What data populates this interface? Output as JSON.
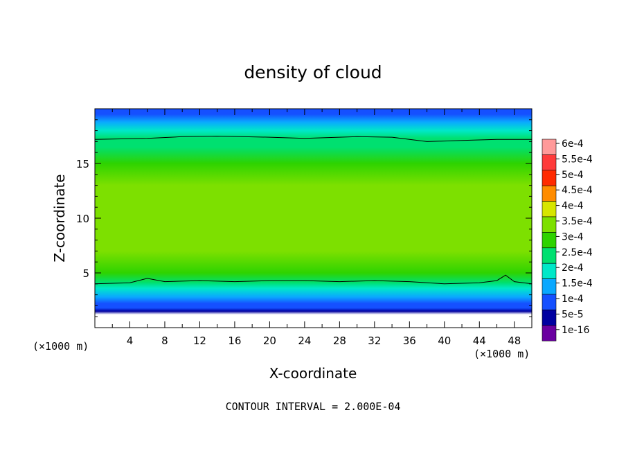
{
  "chart_data": {
    "type": "heatmap",
    "title": "density of cloud",
    "xlabel": "X-coordinate",
    "ylabel": "Z-coordinate",
    "x_unit_left": "(×1000 m)",
    "x_unit_right": "(×1000 m)",
    "xlim": [
      0,
      50
    ],
    "ylim": [
      0,
      20
    ],
    "x_ticks": [
      4,
      8,
      12,
      16,
      20,
      24,
      28,
      32,
      36,
      40,
      44,
      48
    ],
    "y_ticks": [
      5,
      10,
      15
    ],
    "footer": "CONTOUR INTERVAL = 2.000E-04",
    "colorbar": {
      "levels": [
        "6e-4",
        "5.5e-4",
        "5e-4",
        "4.5e-4",
        "4e-4",
        "3.5e-4",
        "3e-4",
        "2.5e-4",
        "2e-4",
        "1.5e-4",
        "1e-4",
        "5e-5",
        "1e-16"
      ],
      "colors": [
        "#ff9a9a",
        "#ff3b3b",
        "#ff2a00",
        "#ff8c00",
        "#d7e600",
        "#7de000",
        "#2ed300",
        "#00e070",
        "#00e8c8",
        "#0aa8ff",
        "#1550ff",
        "#0000a0",
        "#6a00a0"
      ]
    },
    "profile": {
      "z": [
        0,
        1.2,
        1.5,
        1.8,
        2.2,
        2.8,
        3.6,
        4.1,
        5.0,
        7.0,
        9.0,
        11.0,
        13.0,
        15.0,
        16.5,
        17.3,
        18.0,
        18.8,
        19.5,
        20.0
      ],
      "density": [
        null,
        null,
        2e-16,
        5e-05,
        8e-05,
        0.00012,
        0.00015,
        0.0002,
        0.00026,
        0.00031,
        0.00033,
        0.00033,
        0.00031,
        0.00028,
        0.00024,
        0.0002,
        0.00016,
        0.00012,
        9e-05,
        7e-05
      ]
    },
    "contours": [
      {
        "level": "2.0E-04",
        "x": [
          0,
          4,
          6,
          8,
          12,
          16,
          20,
          24,
          28,
          32,
          36,
          40,
          44,
          46,
          47,
          48,
          50
        ],
        "z": [
          4.0,
          4.1,
          4.5,
          4.2,
          4.3,
          4.2,
          4.3,
          4.3,
          4.2,
          4.3,
          4.2,
          4.0,
          4.1,
          4.3,
          4.8,
          4.2,
          4.0
        ]
      },
      {
        "level": "2.0E-04",
        "x": [
          0,
          6,
          10,
          14,
          20,
          24,
          30,
          34,
          38,
          42,
          46,
          50
        ],
        "z": [
          17.2,
          17.3,
          17.45,
          17.5,
          17.4,
          17.3,
          17.45,
          17.4,
          17.0,
          17.1,
          17.2,
          17.2
        ]
      }
    ]
  }
}
